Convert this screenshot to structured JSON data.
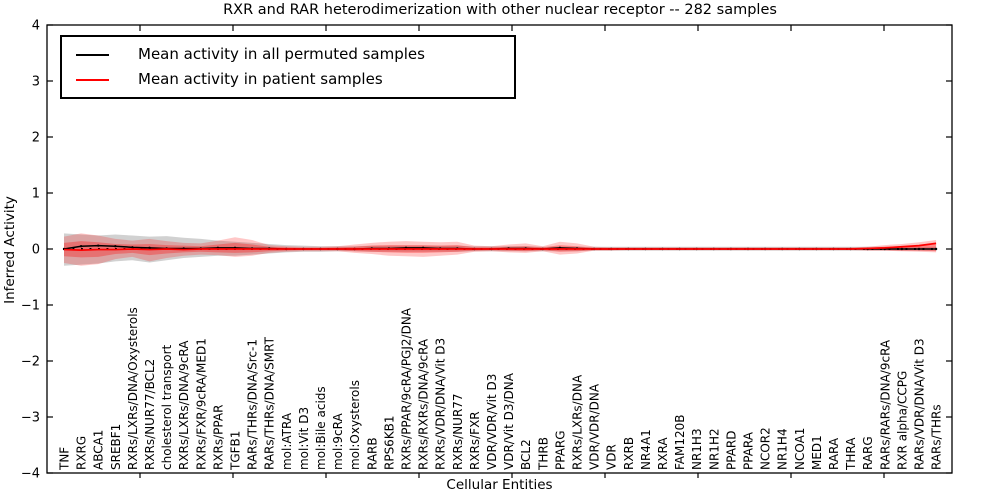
{
  "title": "RXR and RAR heterodimerization with other nuclear receptor -- 282 samples",
  "legend": {
    "items": [
      {
        "label": "Mean activity in all permuted samples",
        "color": "#000000"
      },
      {
        "label": "Mean activity in patient samples",
        "color": "#ff0000"
      }
    ]
  },
  "chart_data": {
    "type": "line",
    "title": "RXR and RAR heterodimerization with other nuclear receptor -- 282 samples",
    "xlabel": "Cellular Entities",
    "ylabel": "Inferred Activity",
    "ylim": [
      -4,
      4
    ],
    "y_ticks": [
      4,
      3,
      2,
      1,
      0,
      -1,
      -2,
      -3,
      -4
    ],
    "y_tick_labels": [
      "4",
      "3",
      "2",
      "1",
      "0",
      "−1",
      "−2",
      "−3",
      "−4"
    ],
    "grid": false,
    "legend_position": "upper left",
    "categories": [
      "TNF",
      "RXRG",
      "ABCA1",
      "SREBF1",
      "RXRs/LXRs/DNA/Oxysterols",
      "RXRs/NUR77/BCL2",
      "cholesterol transport",
      "RXRs/LXRs/DNA/9cRA",
      "RXRs/FXR/9cRA/MED1",
      "RXRs/PPAR",
      "TGFB1",
      "RARs/THRs/DNA/Src-1",
      "RARs/THRs/DNA/SMRT",
      "mol:ATRA",
      "mol:Vit D3",
      "mol:Bile acids",
      "mol:9cRA",
      "mol:Oxysterols",
      "RARB",
      "RPS6KB1",
      "RXRs/PPAR/9cRA/PGJ2/DNA",
      "RXRs/RXRs/DNA/9cRA",
      "RXRs/VDR/DNA/Vit D3",
      "RXRs/NUR77",
      "RXRs/FXR",
      "VDR/VDR/Vit D3",
      "VDR/Vit D3/DNA",
      "BCL2",
      "THRB",
      "PPARG",
      "RXRs/LXRs/DNA",
      "VDR/VDR/DNA",
      "VDR",
      "RXRB",
      "NR4A1",
      "RXRA",
      "FAM120B",
      "NR1H3",
      "NR1H2",
      "PPARD",
      "PPARA",
      "NCOR2",
      "NR1H4",
      "NCOA1",
      "MED1",
      "RARA",
      "THRA",
      "RARG",
      "RARs/RARs/DNA/9cRA",
      "RXR alpha/CCPG",
      "RARs/VDR/DNA/Vit D3",
      "RARs/THRs"
    ],
    "series": [
      {
        "name": "Mean activity in all permuted samples",
        "color": "#000000",
        "values": [
          0.0,
          0.05,
          0.06,
          0.05,
          0.03,
          0.02,
          0.01,
          0.01,
          0.01,
          0.02,
          0.02,
          0.01,
          0.01,
          0.0,
          0.0,
          0.0,
          0.0,
          0.0,
          0.01,
          0.01,
          0.02,
          0.02,
          0.01,
          0.01,
          0.0,
          0.0,
          0.01,
          0.01,
          0.0,
          0.02,
          0.01,
          0.0,
          0.0,
          0.0,
          0.0,
          0.0,
          0.0,
          0.0,
          0.0,
          0.0,
          0.0,
          0.0,
          0.0,
          0.0,
          0.0,
          0.0,
          0.0,
          0.0,
          0.0,
          0.0,
          0.0,
          0.0
        ]
      },
      {
        "name": "Mean activity in patient samples",
        "color": "#ff0000",
        "values": [
          -0.01,
          -0.02,
          -0.01,
          -0.01,
          0.0,
          -0.01,
          0.0,
          -0.01,
          0.0,
          0.0,
          0.0,
          0.0,
          0.0,
          0.0,
          0.0,
          0.0,
          0.0,
          0.0,
          0.0,
          0.0,
          0.0,
          0.0,
          0.0,
          0.0,
          0.0,
          0.0,
          0.0,
          0.0,
          0.0,
          0.0,
          0.0,
          0.0,
          0.0,
          0.0,
          0.0,
          0.0,
          0.0,
          0.0,
          0.0,
          0.0,
          0.0,
          0.0,
          0.0,
          0.0,
          0.0,
          0.0,
          0.0,
          0.01,
          0.02,
          0.04,
          0.06,
          0.1
        ]
      }
    ],
    "bands": [
      {
        "name": "permuted-samples-range",
        "color": "#999999",
        "opacity": 0.45,
        "upper": [
          0.28,
          0.26,
          0.24,
          0.26,
          0.24,
          0.22,
          0.23,
          0.2,
          0.18,
          0.15,
          0.13,
          0.11,
          0.09,
          0.07,
          0.06,
          0.05,
          0.05,
          0.05,
          0.06,
          0.06,
          0.06,
          0.06,
          0.06,
          0.06,
          0.05,
          0.05,
          0.05,
          0.05,
          0.04,
          0.04,
          0.04,
          0.04,
          0.04,
          0.04,
          0.04,
          0.04,
          0.04,
          0.04,
          0.04,
          0.04,
          0.04,
          0.04,
          0.04,
          0.04,
          0.04,
          0.04,
          0.04,
          0.04,
          0.04,
          0.04,
          0.04,
          0.04
        ],
        "lower": [
          -0.3,
          -0.28,
          -0.26,
          -0.22,
          -0.2,
          -0.24,
          -0.2,
          -0.16,
          -0.14,
          -0.12,
          -0.12,
          -0.1,
          -0.08,
          -0.06,
          -0.05,
          -0.05,
          -0.04,
          -0.04,
          -0.05,
          -0.05,
          -0.05,
          -0.05,
          -0.05,
          -0.05,
          -0.04,
          -0.04,
          -0.04,
          -0.04,
          -0.04,
          -0.04,
          -0.04,
          -0.03,
          -0.03,
          -0.03,
          -0.03,
          -0.03,
          -0.03,
          -0.03,
          -0.03,
          -0.03,
          -0.03,
          -0.03,
          -0.03,
          -0.03,
          -0.03,
          -0.03,
          -0.03,
          -0.03,
          -0.03,
          -0.03,
          -0.03,
          -0.03
        ]
      },
      {
        "name": "patient-samples-range-outer",
        "color": "#ff0000",
        "opacity": 0.22,
        "upper": [
          0.22,
          0.28,
          0.24,
          0.18,
          0.15,
          0.18,
          0.14,
          0.11,
          0.1,
          0.15,
          0.21,
          0.16,
          0.07,
          0.05,
          0.04,
          0.04,
          0.05,
          0.08,
          0.11,
          0.13,
          0.14,
          0.13,
          0.12,
          0.13,
          0.06,
          0.05,
          0.08,
          0.1,
          0.05,
          0.13,
          0.1,
          0.04,
          0.03,
          0.03,
          0.03,
          0.03,
          0.03,
          0.03,
          0.03,
          0.03,
          0.03,
          0.03,
          0.03,
          0.03,
          0.03,
          0.03,
          0.03,
          0.04,
          0.07,
          0.09,
          0.12,
          0.16
        ],
        "lower": [
          -0.25,
          -0.3,
          -0.27,
          -0.18,
          -0.14,
          -0.22,
          -0.16,
          -0.12,
          -0.1,
          -0.11,
          -0.14,
          -0.12,
          -0.07,
          -0.05,
          -0.04,
          -0.04,
          -0.04,
          -0.07,
          -0.09,
          -0.12,
          -0.13,
          -0.14,
          -0.12,
          -0.1,
          -0.05,
          -0.04,
          -0.06,
          -0.07,
          -0.04,
          -0.1,
          -0.08,
          -0.03,
          -0.03,
          -0.02,
          -0.02,
          -0.02,
          -0.02,
          -0.02,
          -0.02,
          -0.02,
          -0.02,
          -0.02,
          -0.02,
          -0.02,
          -0.02,
          -0.02,
          -0.02,
          -0.03,
          -0.03,
          -0.04,
          -0.05,
          -0.06
        ]
      },
      {
        "name": "patient-samples-range-inner",
        "color": "#ff0000",
        "opacity": 0.3,
        "upper": [
          0.11,
          0.14,
          0.12,
          0.09,
          0.08,
          0.09,
          0.07,
          0.06,
          0.05,
          0.08,
          0.11,
          0.08,
          0.04,
          0.03,
          0.02,
          0.02,
          0.03,
          0.04,
          0.06,
          0.07,
          0.07,
          0.07,
          0.06,
          0.07,
          0.03,
          0.03,
          0.04,
          0.05,
          0.03,
          0.07,
          0.05,
          0.02,
          0.02,
          0.02,
          0.02,
          0.02,
          0.02,
          0.02,
          0.02,
          0.02,
          0.02,
          0.02,
          0.02,
          0.02,
          0.02,
          0.02,
          0.02,
          0.02,
          0.04,
          0.05,
          0.06,
          0.08
        ],
        "lower": [
          -0.13,
          -0.15,
          -0.14,
          -0.09,
          -0.07,
          -0.11,
          -0.08,
          -0.06,
          -0.05,
          -0.06,
          -0.07,
          -0.06,
          -0.04,
          -0.03,
          -0.02,
          -0.02,
          -0.02,
          -0.04,
          -0.05,
          -0.06,
          -0.07,
          -0.07,
          -0.06,
          -0.05,
          -0.03,
          -0.02,
          -0.03,
          -0.04,
          -0.02,
          -0.05,
          -0.04,
          -0.02,
          -0.02,
          -0.01,
          -0.01,
          -0.01,
          -0.01,
          -0.01,
          -0.01,
          -0.01,
          -0.01,
          -0.01,
          -0.01,
          -0.01,
          -0.01,
          -0.01,
          -0.01,
          -0.02,
          -0.02,
          -0.03,
          -0.03,
          -0.04
        ]
      }
    ],
    "zero_line": {
      "value": 0,
      "style": "dotted",
      "color": "#000000"
    }
  }
}
